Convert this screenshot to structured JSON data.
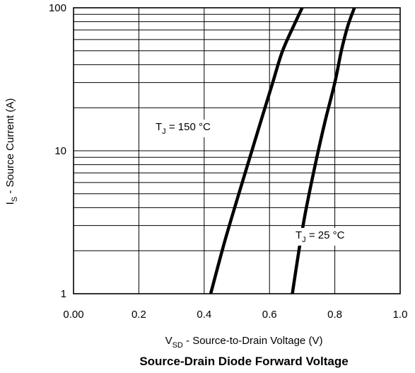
{
  "chart_data": {
    "type": "line",
    "title": "Source-Drain Diode Forward Voltage",
    "xlabel": {
      "main": "V",
      "sub": "SD",
      "rest": " - Source-to-Drain Voltage (V)"
    },
    "ylabel": {
      "main": "I",
      "sub": "S",
      "rest": " - Source Current (A)"
    },
    "xlim": [
      0,
      1.0
    ],
    "ylim": [
      1,
      100
    ],
    "yscale": "log",
    "grid": true,
    "x_ticks": [
      0.0,
      0.2,
      0.4,
      0.6,
      0.8,
      1.0
    ],
    "x_tick_labels": [
      "0.00",
      "0.2",
      "0.4",
      "0.6",
      "0.8",
      "1.0"
    ],
    "y_ticks": [
      1,
      10,
      100
    ],
    "y_tick_labels": [
      "1",
      "10",
      "100"
    ],
    "series": [
      {
        "annotation": {
          "main": "T",
          "sub": "J",
          "rest": " = 150 °C"
        },
        "x": [
          0.42,
          0.46,
          0.5,
          0.54,
          0.58,
          0.61,
          0.64,
          0.68,
          0.7
        ],
        "y": [
          1,
          2.2,
          4.5,
          9,
          18,
          30,
          50,
          80,
          100
        ]
      },
      {
        "annotation": {
          "main": "T",
          "sub": "J",
          "rest": " = 25 °C"
        },
        "x": [
          0.67,
          0.69,
          0.71,
          0.74,
          0.77,
          0.8,
          0.82,
          0.84,
          0.86
        ],
        "y": [
          1,
          2.0,
          3.7,
          8,
          16,
          30,
          50,
          75,
          100
        ]
      }
    ]
  }
}
